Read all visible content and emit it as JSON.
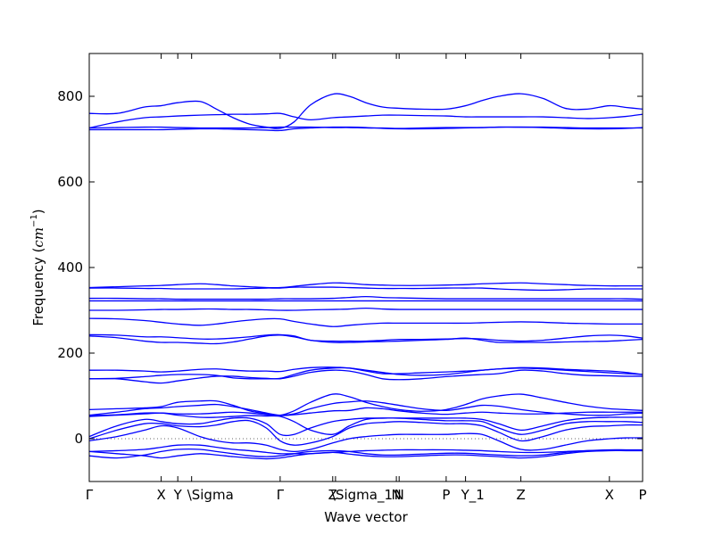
{
  "chart_data": {
    "type": "line",
    "title": "",
    "xlabel": "Wave vector",
    "ylabel": "Frequency ($cm^{-1}$)",
    "ylabel_display": {
      "text": "Frequency (",
      "math": "cm",
      "sup": "−1",
      "close": ")"
    },
    "ylim": [
      -100,
      900
    ],
    "yticks": [
      0,
      200,
      400,
      600,
      800
    ],
    "zero_line": true,
    "line_color": "#0000ff",
    "grid": false,
    "legend": "none",
    "x_ticks": [
      {
        "label": "Γ",
        "x": 0.0
      },
      {
        "label": "X",
        "x": 1.3
      },
      {
        "label": "Y",
        "x": 1.6
      },
      {
        "label": "\\Sigma",
        "x": 1.85
      },
      {
        "label": "Γ",
        "x": 3.45
      },
      {
        "label": "Z",
        "x": 4.4
      },
      {
        "label": "\\Sigma_1",
        "x": 4.45
      },
      {
        "label": "N",
        "x": 5.55
      },
      {
        "label": "N",
        "x": 5.6
      },
      {
        "label": "P",
        "x": 6.45
      },
      {
        "label": "Y_1",
        "x": 6.8
      },
      {
        "label": "Z",
        "x": 7.8
      },
      {
        "label": "X",
        "x": 9.4
      },
      {
        "label": "P",
        "x": 10.0
      }
    ],
    "x": [
      0.0,
      0.5,
      1.0,
      1.3,
      1.6,
      2.0,
      2.3,
      2.6,
      2.9,
      3.2,
      3.45,
      3.7,
      4.0,
      4.4,
      4.7,
      5.0,
      5.3,
      5.6,
      6.0,
      6.45,
      6.8,
      7.1,
      7.4,
      7.8,
      8.2,
      8.6,
      9.0,
      9.4,
      9.7,
      10.0
    ],
    "series": [
      {
        "values": [
          760,
          760,
          775,
          778,
          785,
          788,
          770,
          750,
          735,
          728,
          725,
          740,
          780,
          805,
          800,
          785,
          775,
          772,
          770,
          770,
          778,
          790,
          800,
          806,
          795,
          772,
          770,
          778,
          774,
          770
        ]
      },
      {
        "values": [
          726,
          740,
          750,
          752,
          754,
          756,
          757,
          758,
          758,
          759,
          760,
          752,
          745,
          750,
          752,
          754,
          756,
          756,
          755,
          754,
          752,
          752,
          752,
          752,
          752,
          750,
          748,
          750,
          753,
          758
        ]
      },
      {
        "values": [
          726,
          727,
          728,
          728,
          727,
          726,
          726,
          726,
          726,
          727,
          728,
          728,
          728,
          727,
          727,
          726,
          726,
          725,
          726,
          727,
          727,
          727,
          728,
          728,
          728,
          727,
          726,
          726,
          726,
          726
        ]
      },
      {
        "values": [
          722,
          722,
          722,
          722,
          723,
          724,
          724,
          723,
          722,
          721,
          720,
          724,
          726,
          728,
          728,
          727,
          725,
          724,
          724,
          725,
          726,
          727,
          728,
          728,
          727,
          725,
          724,
          724,
          725,
          727
        ]
      },
      {
        "values": [
          353,
          355,
          357,
          358,
          360,
          362,
          360,
          357,
          355,
          353,
          353,
          356,
          360,
          364,
          363,
          360,
          359,
          358,
          358,
          359,
          360,
          362,
          363,
          364,
          362,
          360,
          358,
          357,
          357,
          357
        ]
      },
      {
        "values": [
          352,
          352,
          351,
          351,
          350,
          350,
          350,
          350,
          351,
          352,
          352,
          354,
          354,
          354,
          353,
          352,
          351,
          351,
          351,
          352,
          352,
          352,
          350,
          348,
          347,
          348,
          350,
          350,
          350,
          350
        ]
      },
      {
        "values": [
          328,
          328,
          327,
          327,
          326,
          326,
          326,
          326,
          326,
          326,
          327,
          327,
          327,
          328,
          330,
          332,
          330,
          329,
          328,
          327,
          327,
          327,
          327,
          327,
          327,
          327,
          327,
          327,
          327,
          326
        ]
      },
      {
        "values": [
          322,
          322,
          322,
          322,
          322,
          322,
          322,
          322,
          322,
          322,
          322,
          322,
          322,
          322,
          322,
          322,
          322,
          322,
          322,
          322,
          322,
          322,
          322,
          322,
          322,
          322,
          322,
          322,
          322,
          322
        ]
      },
      {
        "values": [
          300,
          300,
          301,
          302,
          302,
          303,
          303,
          302,
          302,
          301,
          300,
          300,
          301,
          302,
          303,
          305,
          303,
          302,
          302,
          302,
          302,
          302,
          302,
          302,
          302,
          302,
          302,
          302,
          302,
          302
        ]
      },
      {
        "values": [
          281,
          280,
          276,
          272,
          268,
          265,
          268,
          273,
          277,
          280,
          280,
          274,
          268,
          262,
          265,
          268,
          270,
          270,
          270,
          270,
          270,
          271,
          272,
          273,
          272,
          270,
          269,
          268,
          268,
          268
        ]
      },
      {
        "values": [
          243,
          242,
          238,
          238,
          236,
          233,
          233,
          235,
          238,
          242,
          243,
          240,
          230,
          228,
          228,
          228,
          230,
          232,
          232,
          233,
          234,
          233,
          230,
          228,
          230,
          235,
          240,
          242,
          240,
          235
        ]
      },
      {
        "values": [
          240,
          236,
          228,
          225,
          225,
          223,
          222,
          226,
          233,
          240,
          242,
          238,
          230,
          225,
          225,
          226,
          227,
          228,
          230,
          232,
          235,
          230,
          225,
          225,
          225,
          226,
          227,
          228,
          230,
          232
        ]
      },
      {
        "values": [
          160,
          160,
          158,
          156,
          158,
          162,
          163,
          160,
          158,
          158,
          157,
          162,
          166,
          167,
          165,
          158,
          152,
          152,
          154,
          156,
          158,
          160,
          163,
          166,
          165,
          162,
          160,
          158,
          155,
          150
        ]
      },
      {
        "values": [
          140,
          141,
          145,
          148,
          150,
          150,
          148,
          142,
          140,
          140,
          141,
          150,
          160,
          165,
          165,
          160,
          155,
          150,
          148,
          150,
          155,
          160,
          163,
          165,
          163,
          160,
          157,
          154,
          152,
          150
        ]
      },
      {
        "values": [
          140,
          140,
          133,
          130,
          135,
          142,
          146,
          146,
          143,
          141,
          140,
          146,
          155,
          160,
          158,
          150,
          140,
          138,
          140,
          145,
          148,
          150,
          152,
          160,
          158,
          152,
          148,
          147,
          146,
          146
        ]
      },
      {
        "values": [
          68,
          70,
          72,
          75,
          85,
          88,
          88,
          78,
          65,
          58,
          55,
          65,
          85,
          104,
          98,
          85,
          75,
          68,
          64,
          68,
          80,
          93,
          100,
          104,
          95,
          85,
          76,
          70,
          68,
          66
        ]
      },
      {
        "values": [
          55,
          62,
          70,
          72,
          75,
          78,
          80,
          75,
          68,
          60,
          55,
          58,
          70,
          82,
          86,
          88,
          84,
          78,
          70,
          66,
          72,
          78,
          76,
          68,
          62,
          58,
          55,
          55,
          58,
          60
        ]
      },
      {
        "values": [
          54,
          56,
          60,
          60,
          58,
          58,
          60,
          62,
          60,
          56,
          54,
          56,
          60,
          65,
          66,
          72,
          70,
          65,
          60,
          57,
          60,
          62,
          60,
          58,
          58,
          60,
          62,
          62,
          62,
          62
        ]
      },
      {
        "values": [
          52,
          55,
          58,
          60,
          55,
          50,
          50,
          52,
          54,
          53,
          52,
          40,
          20,
          10,
          30,
          45,
          48,
          48,
          48,
          48,
          48,
          45,
          35,
          20,
          30,
          42,
          48,
          50,
          50,
          50
        ]
      },
      {
        "values": [
          5,
          30,
          45,
          40,
          35,
          35,
          42,
          48,
          48,
          35,
          10,
          10,
          25,
          40,
          45,
          48,
          48,
          48,
          45,
          42,
          42,
          40,
          25,
          10,
          20,
          35,
          40,
          40,
          40,
          38
        ]
      },
      {
        "values": [
          0,
          20,
          35,
          35,
          30,
          28,
          32,
          40,
          42,
          25,
          -5,
          -15,
          -10,
          5,
          25,
          35,
          38,
          40,
          38,
          35,
          35,
          30,
          15,
          -5,
          5,
          20,
          28,
          30,
          32,
          32
        ]
      },
      {
        "values": [
          -5,
          5,
          20,
          30,
          25,
          5,
          -5,
          -10,
          -10,
          -15,
          -25,
          -30,
          -25,
          -10,
          0,
          5,
          8,
          10,
          10,
          10,
          12,
          10,
          -5,
          -25,
          -25,
          -15,
          -5,
          0,
          2,
          2
        ]
      },
      {
        "values": [
          -30,
          -28,
          -25,
          -20,
          -15,
          -15,
          -20,
          -25,
          -28,
          -32,
          -35,
          -35,
          -35,
          -32,
          -30,
          -28,
          -27,
          -26,
          -26,
          -26,
          -27,
          -28,
          -30,
          -32,
          -32,
          -30,
          -28,
          -27,
          -27,
          -27
        ]
      },
      {
        "values": [
          -30,
          -35,
          -40,
          -45,
          -40,
          -35,
          -38,
          -42,
          -45,
          -47,
          -45,
          -40,
          -35,
          -32,
          -36,
          -40,
          -42,
          -42,
          -40,
          -38,
          -38,
          -40,
          -42,
          -45,
          -42,
          -35,
          -30,
          -28,
          -28,
          -28
        ]
      },
      {
        "values": [
          -40,
          -45,
          -38,
          -30,
          -25,
          -25,
          -30,
          -35,
          -40,
          -42,
          -40,
          -35,
          -30,
          -28,
          -30,
          -35,
          -38,
          -38,
          -36,
          -34,
          -34,
          -36,
          -38,
          -40,
          -38,
          -32,
          -28,
          -26,
          -26,
          -26
        ]
      }
    ]
  }
}
